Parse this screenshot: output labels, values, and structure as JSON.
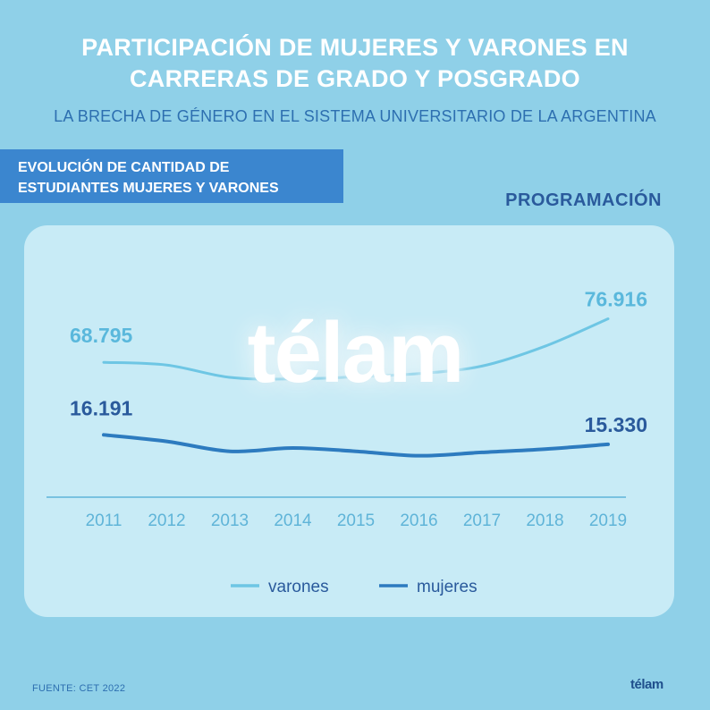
{
  "header": {
    "title_line1": "PARTICIPACIÓN DE MUJERES Y VARONES EN",
    "title_line2": "CARRERAS DE GRADO Y POSGRADO",
    "subtitle": "LA BRECHA DE GÉNERO EN EL SISTEMA UNIVERSITARIO DE LA ARGENTINA"
  },
  "banner": {
    "line1": "EVOLUCIÓN DE CANTIDAD DE",
    "line2": "ESTUDIANTES MUJERES Y VARONES"
  },
  "section_label": "PROGRAMACIÓN",
  "watermark": "télam",
  "footer": {
    "source": "FUENTE: CET 2022",
    "logo": "télam"
  },
  "colors": {
    "background": "#8fd0e8",
    "card": "#c8ebf6",
    "varones": "#6ec6e4",
    "mujeres": "#2d7bbf",
    "value_label_varones": "#5ab8dc",
    "value_label_mujeres": "#2a5a9c"
  },
  "chart_data": {
    "type": "line",
    "x": [
      "2011",
      "2012",
      "2013",
      "2014",
      "2015",
      "2016",
      "2017",
      "2018",
      "2019"
    ],
    "series": [
      {
        "name": "varones",
        "values": [
          68795,
          68300,
          66000,
          65700,
          66100,
          66700,
          68100,
          71800,
          76916
        ],
        "start_label": "68.795",
        "end_label": "76.916"
      },
      {
        "name": "mujeres",
        "values": [
          16191,
          15600,
          14700,
          15000,
          14700,
          14300,
          14600,
          14900,
          15330
        ],
        "start_label": "16.191",
        "end_label": "15.330"
      }
    ],
    "legend": [
      "varones",
      "mujeres"
    ],
    "legend_position": "bottom"
  }
}
